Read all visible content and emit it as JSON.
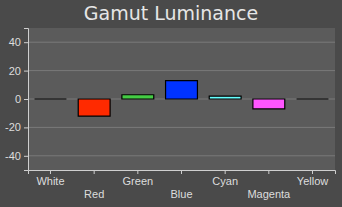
{
  "chart_data": {
    "type": "bar",
    "title": "Gamut Luminance",
    "categories": [
      "White",
      "Red",
      "Green",
      "Blue",
      "Cyan",
      "Magenta",
      "Yellow"
    ],
    "values": [
      0,
      -12,
      3,
      13,
      2,
      -7,
      0
    ],
    "colors": [
      "#ffffff",
      "#ff2a00",
      "#44cc44",
      "#0033ff",
      "#66ffff",
      "#ff55ff",
      "#ffff00"
    ],
    "ylim": [
      -50,
      50
    ],
    "yticks": [
      -40,
      -20,
      0,
      20,
      40
    ],
    "grid": true
  }
}
